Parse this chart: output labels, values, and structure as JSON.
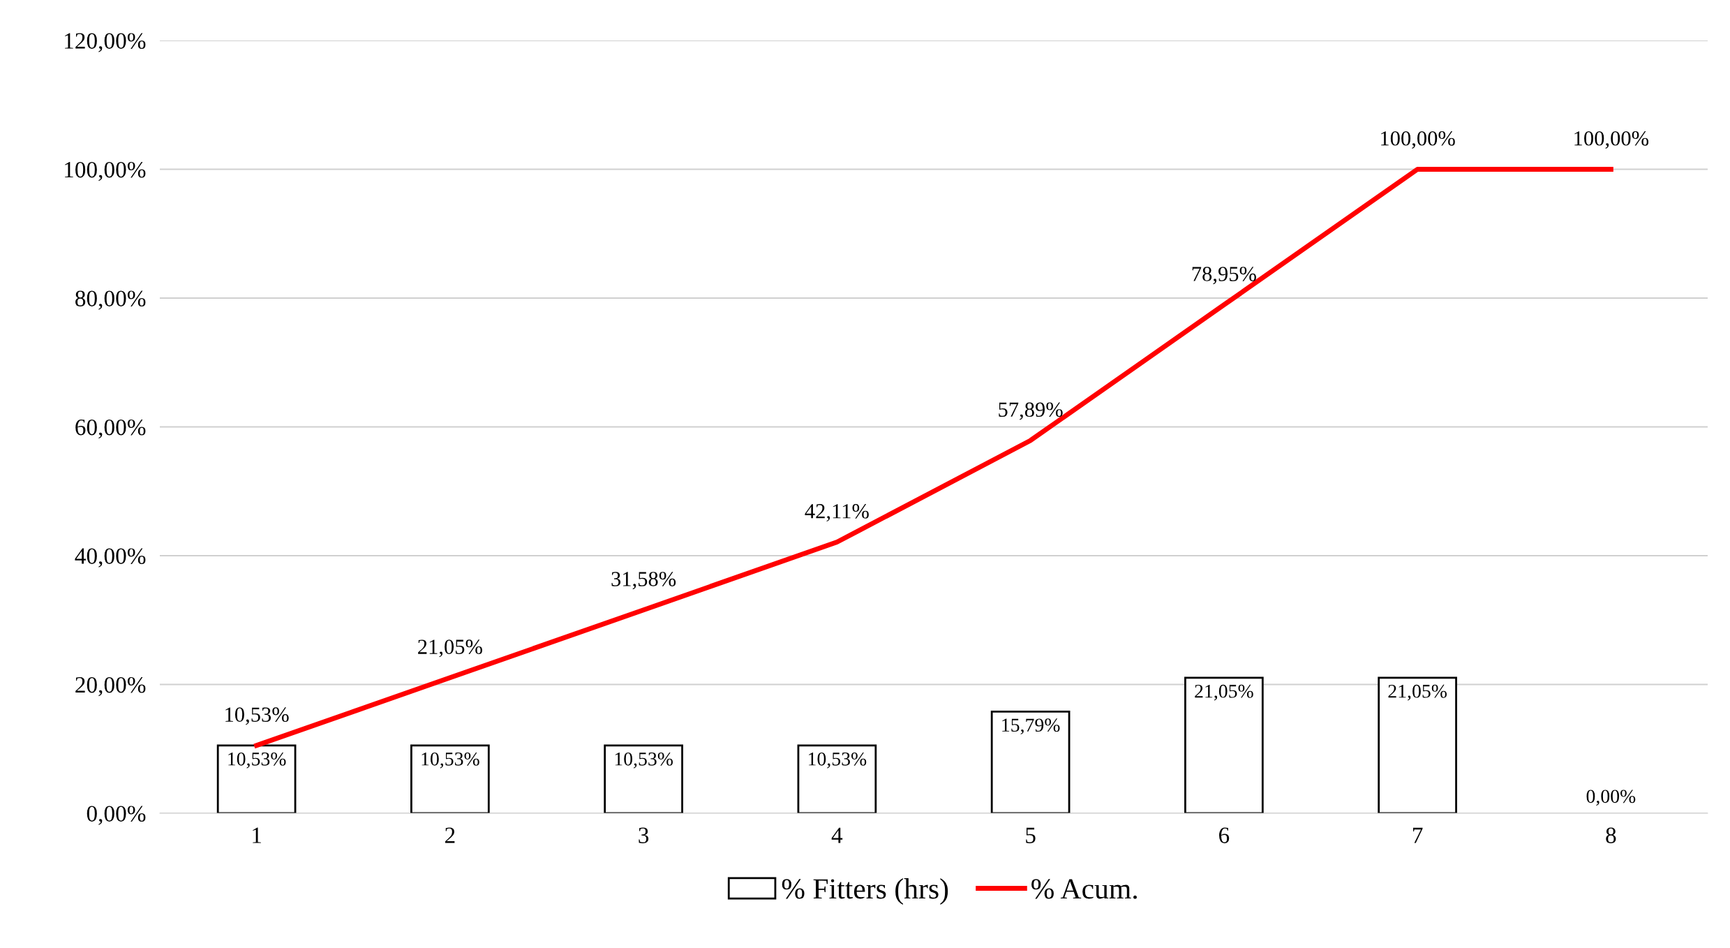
{
  "chart_data": {
    "type": "bar",
    "categories": [
      "1",
      "2",
      "3",
      "4",
      "5",
      "6",
      "7",
      "8"
    ],
    "series": [
      {
        "name": "% Fitters (hrs)",
        "color": "#ffffff",
        "values": [
          10.53,
          10.53,
          10.53,
          10.53,
          15.79,
          21.05,
          21.05,
          0.0
        ],
        "value_labels": [
          "10,53%",
          "10,53%",
          "10,53%",
          "10,53%",
          "15,79%",
          "21,05%",
          "21,05%",
          "0,00%"
        ]
      },
      {
        "name": "% Acum.",
        "type": "line",
        "color": "#ff0000",
        "values": [
          10.53,
          21.05,
          31.58,
          42.11,
          57.89,
          78.95,
          100.0,
          100.0
        ],
        "value_labels": [
          "10,53%",
          "21,05%",
          "31,58%",
          "42,11%",
          "57,89%",
          "78,95%",
          "100,00%",
          "100,00%"
        ]
      }
    ],
    "ylim": [
      0,
      120
    ],
    "yticks": [
      {
        "value": 0,
        "label": "0,00%"
      },
      {
        "value": 20,
        "label": "20,00%"
      },
      {
        "value": 40,
        "label": "40,00%"
      },
      {
        "value": 60,
        "label": "60,00%"
      },
      {
        "value": 80,
        "label": "80,00%"
      },
      {
        "value": 100,
        "label": "100,00%"
      },
      {
        "value": 120,
        "label": "120,00%"
      }
    ],
    "grid": "y",
    "legend": "bottom",
    "marker": "none",
    "line_style": "solid"
  }
}
